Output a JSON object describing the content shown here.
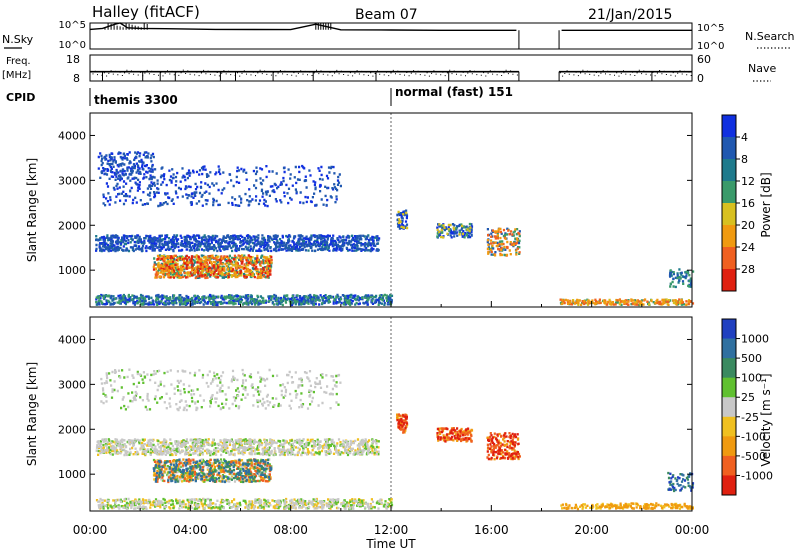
{
  "header": {
    "site": "Halley (fitACF)",
    "beam": "Beam 07",
    "date": "21/Jan/2015"
  },
  "chart_data": [
    {
      "type": "line",
      "panel": "noise",
      "left_label": "N.Sky",
      "right_label": "N.Search",
      "left_ticks": [
        "10^5",
        "10^0"
      ],
      "right_ticks": [
        "10^5",
        "10^0"
      ],
      "right_legend_style": "dotted",
      "y_scale": "log",
      "ylim": [
        1,
        100000
      ],
      "x_hours": [
        0,
        0.5,
        1.0,
        1.2,
        1.5,
        2.0,
        3.0,
        5.0,
        8.0,
        9.0,
        10.0,
        12.0,
        14.0,
        17.0,
        17.2,
        18.6,
        18.8,
        20.0,
        24.0
      ],
      "series": [
        {
          "values": [
            6000,
            9000,
            60000,
            100000,
            12000,
            9000,
            8000,
            6000,
            5500,
            60000,
            5000,
            4500,
            4000,
            4000,
            null,
            null,
            4000,
            4000,
            4000
          ]
        }
      ]
    },
    {
      "type": "line",
      "panel": "frequency",
      "left_label": "Freq.",
      "left_unit": "[MHz]",
      "right_label": "Nave",
      "right_legend_style": "dotted",
      "left_ticks": [
        "18",
        "8"
      ],
      "right_ticks": [
        "60",
        "0"
      ],
      "ylim": [
        8,
        18
      ],
      "x_hours": [
        0,
        17.1,
        18.7,
        24.0
      ],
      "series": [
        {
          "values": [
            11.6,
            11.6,
            11.6,
            11.6
          ]
        }
      ]
    },
    {
      "type": "table",
      "panel": "cpid",
      "label": "CPID",
      "segments": [
        {
          "label": "themis 3300",
          "start_hour": 0
        },
        {
          "label": "normal (fast) 151",
          "start_hour": 12
        }
      ]
    },
    {
      "type": "heatmap",
      "panel": "power",
      "ylabel": "Slant Range [km]",
      "xlim": [
        0,
        24
      ],
      "ylim": [
        180,
        4500
      ],
      "y_ticks": [
        1000,
        2000,
        3000,
        4000
      ],
      "colorbar": {
        "label": "Power [dB]",
        "ticks": [
          "4",
          "8",
          "12",
          "16",
          "20",
          "24",
          "28"
        ],
        "colors": [
          "#1030e0",
          "#2058b0",
          "#1e7a8c",
          "#3a9a6a",
          "#d8c020",
          "#f09a10",
          "#f06020",
          "#e02010"
        ]
      }
    },
    {
      "type": "heatmap",
      "panel": "velocity",
      "ylabel": "Slant Range [km]",
      "xlabel": "Time UT",
      "xlim": [
        0,
        24
      ],
      "ylim": [
        180,
        4500
      ],
      "y_ticks": [
        1000,
        2000,
        3000,
        4000
      ],
      "x_ticks": [
        "00:00",
        "04:00",
        "08:00",
        "12:00",
        "16:00",
        "20:00",
        "00:00"
      ],
      "colorbar": {
        "label": "Velocity [m s⁻¹]",
        "ticks": [
          "1000",
          "500",
          "100",
          "25",
          "-25",
          "-100",
          "-500",
          "-1000"
        ],
        "colors": [
          "#2040c0",
          "#3070a0",
          "#3a8a60",
          "#60c030",
          "#c8c8c8",
          "#f0c020",
          "#f09a10",
          "#f06020",
          "#e02010"
        ]
      }
    }
  ]
}
